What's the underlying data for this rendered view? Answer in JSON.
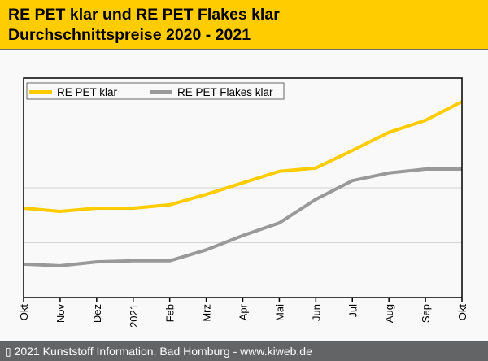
{
  "header": {
    "title_line1": "RE PET klar und RE PET Flakes klar",
    "title_line2": "Durchschnittspreise 2020 - 2021",
    "background_color": "#ffcc00"
  },
  "footer": {
    "copyright_icon": "copyright-icon",
    "text": "▯ 2021 Kunststoff Information, Bad Homburg - www.kiweb.de"
  },
  "chart_data": {
    "type": "line",
    "title": "RE PET klar und RE PET Flakes klar Durchschnittspreise 2020 - 2021",
    "xlabel": "",
    "ylabel": "",
    "categories": [
      "Okt",
      "Nov",
      "Dez",
      "2021",
      "Feb",
      "Mrz",
      "Apr",
      "Mai",
      "Jun",
      "Jul",
      "Aug",
      "Sep",
      "Okt"
    ],
    "ylim": [
      0,
      4
    ],
    "y_gridlines": [
      1,
      2,
      3
    ],
    "y_tick_labels_visible": false,
    "grid": true,
    "legend_position": "top-left",
    "series": [
      {
        "name": "RE PET klar",
        "color": "#ffcc00",
        "values": [
          1.63,
          1.57,
          1.63,
          1.63,
          1.69,
          1.88,
          2.09,
          2.3,
          2.36,
          2.68,
          3.01,
          3.23,
          3.57
        ]
      },
      {
        "name": "RE PET Flakes klar",
        "color": "#999999",
        "values": [
          0.61,
          0.58,
          0.65,
          0.67,
          0.67,
          0.87,
          1.13,
          1.36,
          1.79,
          2.13,
          2.27,
          2.34,
          2.34
        ]
      }
    ]
  }
}
